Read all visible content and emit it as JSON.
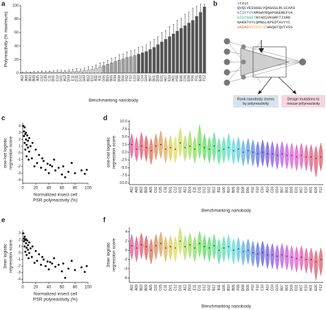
{
  "chart_data": [
    {
      "type": "bar",
      "panel": "a",
      "ylabel": "Polyreactivity (% maximum)",
      "xlabel": "Benchmarking nanobody",
      "categories": [
        "A02",
        "A09",
        "B03",
        "B09",
        "A05",
        "C02",
        "C05",
        "C11",
        "D01",
        "C12",
        "G01",
        "A12",
        "D04",
        "E11",
        "D11",
        "G12",
        "G02",
        "B12",
        "E12",
        "B11",
        "A11",
        "G06",
        "B10",
        "B05",
        "F09",
        "D08",
        "D06",
        "F02",
        "F10",
        "C10",
        "A10",
        "C04",
        "G04",
        "B07",
        "B01",
        "D09",
        "E01",
        "H07",
        "E10",
        "H01",
        "H11",
        "E06",
        "C06",
        "E08",
        "F06",
        "F01",
        "E09",
        "F12"
      ],
      "label_colors": [
        "#e03c31",
        "#222",
        "#222",
        "#222",
        "#e03c31",
        "#222",
        "#222",
        "#222",
        "#222",
        "#222",
        "#222",
        "#222",
        "#222",
        "#222",
        "#222",
        "#222",
        "#222",
        "#222",
        "#222",
        "#222",
        "#222",
        "#222",
        "#222",
        "#222",
        "#222",
        "#222",
        "#222",
        "#e03c31",
        "#222",
        "#222",
        "#222",
        "#222",
        "#222",
        "#222",
        "#222",
        "#222",
        "#222",
        "#222",
        "#222",
        "#222",
        "#222",
        "#222",
        "#222",
        "#e03c31",
        "#222",
        "#222",
        "#222",
        "#222"
      ],
      "values": [
        0.5,
        0.8,
        0.6,
        0.9,
        1.0,
        1.2,
        1.1,
        1.3,
        1.5,
        1.6,
        1.8,
        2.0,
        2.2,
        2.5,
        2.8,
        3.0,
        3.5,
        4.5,
        5.5,
        7,
        9,
        11,
        13,
        15,
        17,
        19,
        21,
        23,
        24,
        26,
        28,
        30,
        32,
        35,
        38,
        42,
        46,
        50,
        54,
        58,
        62,
        66,
        70,
        74,
        78,
        84,
        90,
        98
      ],
      "errors": [
        1,
        1.5,
        1,
        2,
        1.5,
        2,
        2,
        1.5,
        2,
        3,
        2.5,
        2,
        3,
        3,
        4,
        3,
        4,
        5,
        4,
        5,
        6,
        5,
        6,
        7,
        6,
        8,
        7,
        8,
        9,
        8,
        10,
        9,
        10,
        11,
        12,
        12,
        14,
        13,
        15,
        14,
        16,
        15,
        17,
        16,
        18,
        15,
        12,
        4
      ],
      "colors": [
        "#d4d4d4",
        "#d4d4d4",
        "#d4d4d4",
        "#d4d4d4",
        "#d4d4d4",
        "#d4d4d4",
        "#d4d4d4",
        "#d4d4d4",
        "#d4d4d4",
        "#d4d4d4",
        "#d4d4d4",
        "#d4d4d4",
        "#d4d4d4",
        "#d4d4d4",
        "#d4d4d4",
        "#d4d4d4",
        "#d4d4d4",
        "#d4d4d4",
        "#d4d4d4",
        "#d4d4d4",
        "#d4d4d4",
        "#a0a0a0",
        "#a0a0a0",
        "#a0a0a0",
        "#a0a0a0",
        "#a0a0a0",
        "#a0a0a0",
        "#a0a0a0",
        "#a0a0a0",
        "#a0a0a0",
        "#555555",
        "#555555",
        "#555555",
        "#555555",
        "#555555",
        "#555555",
        "#555555",
        "#555555",
        "#555555",
        "#555555",
        "#555555",
        "#555555",
        "#555555",
        "#555555",
        "#555555",
        "#555555",
        "#555555",
        "#555555"
      ],
      "ylim": [
        0,
        100
      ],
      "yticks": [
        0,
        20,
        40,
        60,
        80,
        100
      ]
    },
    {
      "type": "scatter",
      "panel": "c",
      "ylabel": [
        "one-hot logistic",
        "regression score"
      ],
      "xlabel": [
        "Normalized insect cell",
        "PSR polyreactivity (%)"
      ],
      "x": [
        1,
        2,
        2,
        3,
        3,
        4,
        4,
        5,
        5,
        6,
        6,
        7,
        8,
        8,
        9,
        10,
        10,
        12,
        14,
        15,
        18,
        20,
        22,
        25,
        28,
        30,
        32,
        35,
        38,
        40,
        42,
        45,
        48,
        50,
        55,
        60,
        62,
        65,
        70,
        75,
        80,
        90,
        95,
        98
      ],
      "y": [
        4,
        3.2,
        2.5,
        3.8,
        1.5,
        2.8,
        0.5,
        3,
        2,
        -0.5,
        1.2,
        2.6,
        0.8,
        1.8,
        -1,
        2.2,
        0.2,
        1,
        -0.8,
        1.5,
        -2,
        0.5,
        -1.5,
        -0.3,
        -2.2,
        -0.8,
        -1.2,
        -2.5,
        -1.6,
        -3,
        -1.8,
        -2,
        -1,
        -2.6,
        -2.2,
        -3.2,
        -2,
        -3.6,
        -2.8,
        -1.5,
        -3,
        -2.6,
        -3.1,
        -2.5
      ],
      "color": "#111111",
      "xlim": [
        0,
        100
      ],
      "xticks": [
        0,
        20,
        40,
        60,
        80,
        100
      ],
      "ylim": [
        -4.5,
        4.5
      ],
      "yticks": [
        -4,
        -3,
        -2,
        -1,
        0,
        1,
        2,
        3,
        4
      ]
    },
    {
      "type": "violin",
      "panel": "d",
      "ylabel": [
        "one-hot logistic",
        "regression score"
      ],
      "xlabel": "Benchmarking nanobody",
      "categories": [
        "A02",
        "A09",
        "B03",
        "B09",
        "A05",
        "C02",
        "C05",
        "C11",
        "D01",
        "C12",
        "G01",
        "A12",
        "D04",
        "E11",
        "D11",
        "G12",
        "G02",
        "B12",
        "B11",
        "G06",
        "B10",
        "B05",
        "F09",
        "D08",
        "D06",
        "F02",
        "F10",
        "C10",
        "A10",
        "C04",
        "G04",
        "B07",
        "B01",
        "D09",
        "E01",
        "H07",
        "E10",
        "H01",
        "E06",
        "F12"
      ],
      "colors": [
        "#e066a3",
        "#e0668f",
        "#e0667a",
        "#e06666",
        "#e07a66",
        "#e08f66",
        "#e0a366",
        "#e0b866",
        "#e0cc66",
        "#e0e066",
        "#cce066",
        "#b8e066",
        "#a3e066",
        "#8fe066",
        "#7ae066",
        "#66e066",
        "#66e07a",
        "#66e08f",
        "#66e0a3",
        "#66e0b8",
        "#66e0cc",
        "#66e0e0",
        "#66cce0",
        "#66b8e0",
        "#66a3e0",
        "#668fe0",
        "#667ae0",
        "#6666e0",
        "#7a66e0",
        "#8f66e0",
        "#a366e0",
        "#b866e0",
        "#cc66e0",
        "#e066e0",
        "#e066cc",
        "#e066b8",
        "#e066a3",
        "#e0668f",
        "#e0667a",
        "#e06670"
      ],
      "median": [
        2.5,
        1,
        2,
        1.5,
        0.5,
        2,
        2.5,
        1,
        1.5,
        1,
        3,
        1.5,
        2,
        1,
        2.5,
        1.5,
        1,
        2,
        0.5,
        1,
        1.5,
        0.5,
        1,
        0,
        0.5,
        0,
        -0.5,
        0,
        -0.5,
        -0.5,
        -1,
        -0.5,
        -1,
        -1,
        -1.5,
        -1,
        -1.5,
        -1.5,
        -2,
        -1.5
      ],
      "low": [
        -2,
        -3,
        -2.5,
        -3,
        -4,
        -2.5,
        -2,
        -3.5,
        -3,
        -3.5,
        -1.5,
        -3,
        -2.5,
        -3.5,
        -2,
        -3,
        -3.5,
        -3,
        -4,
        -3.5,
        -3,
        -4,
        -3.5,
        -4.5,
        -4,
        -4.5,
        -5,
        -4.5,
        -5,
        -5,
        -5.5,
        -5,
        -5.5,
        -5.5,
        -6,
        -5.5,
        -6,
        -6.5,
        -8,
        -6
      ],
      "high": [
        6,
        5,
        6.5,
        5.5,
        4.5,
        6,
        7,
        5,
        5.5,
        5,
        8,
        5.5,
        7,
        5,
        9,
        6,
        5,
        6.5,
        4.5,
        5,
        6,
        4.5,
        5,
        4,
        4.5,
        4,
        3.5,
        4,
        3.5,
        3.5,
        3,
        3.5,
        3,
        3,
        2.5,
        3,
        2.5,
        2.5,
        2,
        3
      ],
      "ylim": [
        -10.5,
        10.5
      ],
      "yticks": [
        {
          "value": -10,
          "label": "-10.0"
        },
        -7.5,
        {
          "value": -5,
          "label": "-5.0"
        },
        -2.5,
        {
          "value": 0,
          "label": "0.0"
        },
        2.5,
        {
          "value": 5,
          "label": "5.0"
        },
        7.5,
        {
          "value": 10,
          "label": "10.0"
        }
      ]
    },
    {
      "type": "scatter",
      "panel": "e",
      "ylabel": [
        "3mer logistic",
        "regression score"
      ],
      "xlabel": [
        "Normalized insect cell",
        "PSR polyreactivity (%)"
      ],
      "x": [
        1,
        2,
        2,
        3,
        3,
        4,
        4,
        5,
        5,
        6,
        6,
        7,
        8,
        8,
        9,
        10,
        10,
        12,
        14,
        15,
        18,
        20,
        22,
        25,
        28,
        30,
        32,
        35,
        38,
        40,
        42,
        45,
        48,
        50,
        55,
        60,
        62,
        65,
        70,
        75,
        80,
        90,
        95,
        98
      ],
      "y": [
        3,
        2.2,
        1.8,
        2.5,
        1,
        2,
        0.2,
        2.1,
        1.5,
        -0.3,
        0.8,
        1.9,
        0.5,
        1.2,
        -0.8,
        1.6,
        0,
        0.7,
        -0.6,
        1,
        -1.5,
        0.3,
        -1.2,
        -0.2,
        -1.8,
        -0.6,
        -1,
        -2,
        -1.3,
        -2.5,
        -1.4,
        -1.6,
        -0.8,
        -2.1,
        -1.8,
        -2.8,
        -1.6,
        -3.8,
        -2.4,
        -1.2,
        -2.6,
        -2.2,
        -2.9,
        -2
      ],
      "color": "#111111",
      "xlim": [
        0,
        100
      ],
      "xticks": [
        0,
        20,
        40,
        60,
        80,
        100
      ],
      "ylim": [
        -4.5,
        3.5
      ],
      "yticks": [
        -4,
        -3,
        -2,
        -1,
        0,
        1,
        2,
        3
      ]
    },
    {
      "type": "violin",
      "panel": "f",
      "ylabel": [
        "3mer logistic",
        "regression score"
      ],
      "xlabel": "Benchmarking nanobody",
      "categories": [
        "A02",
        "A09",
        "B03",
        "B09",
        "A05",
        "C02",
        "C05",
        "C11",
        "D01",
        "C12",
        "G01",
        "A12",
        "D04",
        "E11",
        "D11",
        "G12",
        "G02",
        "B12",
        "B11",
        "G06",
        "B10",
        "B05",
        "F09",
        "D08",
        "D06",
        "F02",
        "F10",
        "C10",
        "A10",
        "C04",
        "G04",
        "B07",
        "B01",
        "D09",
        "E01",
        "H07",
        "E10",
        "H01",
        "E06",
        "F12"
      ],
      "colors": [
        "#e066a3",
        "#e0668f",
        "#e0667a",
        "#e06666",
        "#e07a66",
        "#e08f66",
        "#e0a366",
        "#e0b866",
        "#e0cc66",
        "#e0e066",
        "#cce066",
        "#b8e066",
        "#a3e066",
        "#8fe066",
        "#7ae066",
        "#66e066",
        "#66e07a",
        "#66e08f",
        "#66e0a3",
        "#66e0b8",
        "#66e0cc",
        "#66e0e0",
        "#66cce0",
        "#66b8e0",
        "#66a3e0",
        "#668fe0",
        "#667ae0",
        "#6666e0",
        "#7a66e0",
        "#8f66e0",
        "#a366e0",
        "#b866e0",
        "#cc66e0",
        "#e066e0",
        "#e066cc",
        "#e066b8",
        "#e066a3",
        "#e0668f",
        "#e0667a",
        "#e06670"
      ],
      "median": [
        1,
        0.5,
        1.2,
        0.8,
        0,
        1,
        1.5,
        0.5,
        0.8,
        0.5,
        2,
        0.8,
        1.2,
        0.5,
        1.5,
        0.8,
        0.5,
        1,
        0,
        0.5,
        0.8,
        0,
        0.3,
        -0.3,
        0,
        -0.5,
        -0.8,
        -0.5,
        -1,
        -1,
        -1.3,
        -1,
        -1.3,
        -1.5,
        -1.8,
        -1.5,
        -2,
        -2,
        -2.5,
        -2
      ],
      "low": [
        -2,
        -2.5,
        -1.8,
        -2.2,
        -3,
        -2,
        -1.5,
        -2.5,
        -2.2,
        -2.5,
        -1,
        -2.2,
        -1.8,
        -2.5,
        -1.5,
        -2.2,
        -2.5,
        -2,
        -3,
        -2.5,
        -2.2,
        -3,
        -2.7,
        -3.3,
        -3,
        -3.5,
        -3.8,
        -3.5,
        -4,
        -4,
        -4.3,
        -4,
        -4.3,
        -4.5,
        -4.8,
        -4.5,
        -5,
        -5,
        -6.5,
        -5.5
      ],
      "high": [
        3.5,
        3,
        3.8,
        3.2,
        2.5,
        3.5,
        4,
        3,
        3.2,
        3,
        5,
        3.2,
        3.8,
        3,
        4.2,
        3.3,
        3,
        3.5,
        2.5,
        3,
        3.3,
        2.5,
        2.8,
        2.2,
        2.5,
        2,
        1.8,
        2,
        1.5,
        1.5,
        1.2,
        1.5,
        1.2,
        1,
        0.8,
        1,
        0.5,
        0.5,
        0,
        0.5
      ],
      "ylim": [
        -7,
        5
      ],
      "yticks": [
        -6,
        -4,
        -2,
        0,
        2,
        4
      ]
    }
  ],
  "diagram": {
    "panel": "b",
    "sequence_header": ">test",
    "sequence_lines": [
      [
        {
          "text": "QVQLVESGGGLVQAGGSLRLSCAAS",
          "color": "#222222"
        }
      ],
      [
        {
          "text": "GIIFYVY",
          "color": "#2f5fb3"
        },
        {
          "text": "AMGWYRQAPGKEREFVA",
          "color": "#222222"
        }
      ],
      [
        {
          "text": "SISTGGST",
          "color": "#27a26b"
        },
        {
          "text": "NYADSVKGRFTISRD",
          "color": "#222222"
        }
      ],
      [
        {
          "text": "NAKNTVYLQMNSLKPEDTAVYYC",
          "color": "#222222"
        }
      ],
      [
        {
          "text": "AADAGY",
          "color": "#e4572e"
        },
        {
          "text": "VYSYLVD",
          "color": "#f28e2b"
        },
        {
          "text": "WGQGTQVTVSS",
          "color": "#222222"
        }
      ]
    ],
    "boxes": [
      {
        "lines": [
          "Rank nanobody clones",
          "by polyreactivity"
        ],
        "color": "#d7e3ee"
      },
      {
        "lines": [
          "Design mutations to",
          "rescue polyreactivity"
        ],
        "color": "#f6d6e1"
      }
    ]
  }
}
